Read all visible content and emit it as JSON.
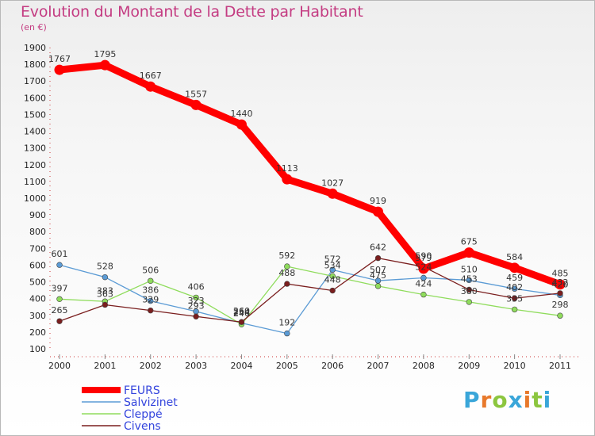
{
  "header": {
    "title": "Evolution du Montant de la Dette par Habitant",
    "unit": "(en €)"
  },
  "logo": {
    "letters": [
      "P",
      "r",
      "o",
      "x",
      "i",
      "t",
      "i"
    ],
    "colors": [
      "#3aa6d9",
      "#e8792b",
      "#8cc63f",
      "#3aa6d9",
      "#e8792b",
      "#8cc63f",
      "#3aa6d9"
    ]
  },
  "chart_data": {
    "type": "line",
    "x": [
      "2000",
      "2001",
      "2002",
      "2003",
      "2004",
      "2005",
      "2006",
      "2007",
      "2008",
      "2009",
      "2010",
      "2011"
    ],
    "ylim": [
      100,
      1900
    ],
    "yticks": [
      100,
      200,
      300,
      400,
      500,
      600,
      700,
      800,
      900,
      1000,
      1100,
      1200,
      1300,
      1400,
      1500,
      1600,
      1700,
      1800,
      1900
    ],
    "grid": false,
    "legend_position": "bottom-left",
    "series": [
      {
        "name": "FEURS",
        "color": "#ff0000",
        "values": [
          1767,
          1795,
          1667,
          1557,
          1440,
          1113,
          1027,
          919,
          579,
          675,
          584,
          485
        ],
        "labels": [
          "1767",
          "1795",
          "1667",
          "1557",
          "1440",
          "1113",
          "1027",
          "919",
          "579",
          "675",
          "584",
          "485"
        ]
      },
      {
        "name": "Salvizinet",
        "color": "#5b9bd5",
        "values": [
          601,
          528,
          386,
          323,
          254,
          192,
          572,
          507,
          524,
          510,
          459,
          420
        ],
        "labels": [
          "601",
          "528",
          "386",
          "323",
          "254",
          "192",
          "572",
          "507",
          "524",
          "510",
          "459",
          "420"
        ]
      },
      {
        "name": "Cleppé",
        "color": "#8fdc5c",
        "values": [
          397,
          383,
          506,
          406,
          246,
          592,
          534,
          475,
          424,
          380,
          335,
          298
        ],
        "labels": [
          "397",
          "383",
          "506",
          "406",
          "246",
          "592",
          "534",
          "475",
          "424",
          "380",
          "335",
          "298"
        ]
      },
      {
        "name": "Civens",
        "color": "#7a1e1e",
        "values": [
          265,
          363,
          329,
          293,
          260,
          488,
          448,
          642,
          590,
          453,
          402,
          432
        ],
        "labels": [
          "265",
          "363",
          "329",
          "293",
          "260",
          "488",
          "448",
          "642",
          "590",
          "453",
          "402",
          "432"
        ]
      }
    ]
  }
}
